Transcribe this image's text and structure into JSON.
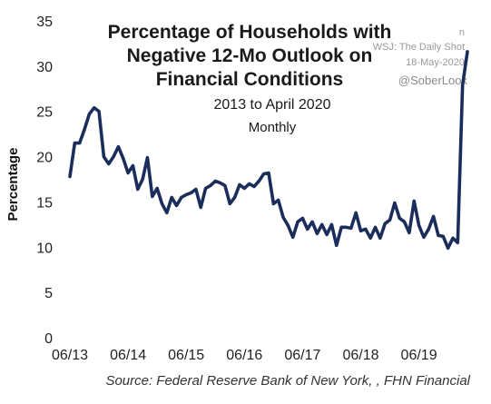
{
  "chart_data": {
    "type": "line",
    "title_lines": [
      "Percentage of Households with",
      "Negative 12-Mo Outlook on",
      "Financial Conditions"
    ],
    "subtitle": "2013 to April 2020",
    "frequency": "Monthly",
    "ylabel": "Percentage",
    "xlabel": "",
    "ylim": [
      0,
      35
    ],
    "yticks": [
      0,
      5,
      10,
      15,
      20,
      25,
      30,
      35
    ],
    "xticks": [
      "06/13",
      "06/14",
      "06/15",
      "06/16",
      "06/17",
      "06/18",
      "06/19"
    ],
    "source": "Source:  Federal Reserve Bank of New York, , FHN Financial",
    "watermark": {
      "line1": "WSJ: The Daily Shot",
      "line2": "18-May-2020",
      "line3": "@SoberLook",
      "partial": "n"
    },
    "grid": false,
    "line_color": "#1b2d5b",
    "series": [
      {
        "x_start": "2013-06",
        "values": [
          17.8,
          21.5,
          21.5,
          23.0,
          24.7,
          25.4,
          25.0,
          20.0,
          19.2,
          20.0,
          21.1,
          19.8,
          18.2,
          19.0,
          16.4,
          17.5,
          19.9,
          15.6,
          16.5,
          14.8,
          13.8,
          15.5,
          14.6,
          15.5,
          15.8,
          16.0,
          16.4,
          14.4,
          16.5,
          16.8,
          17.3,
          17.1,
          16.8,
          14.8,
          15.5,
          16.9,
          16.5,
          17.0,
          16.7,
          17.3,
          18.1,
          18.2,
          14.8,
          15.2,
          13.3,
          12.4,
          11.1,
          12.8,
          13.2,
          12.0,
          12.8,
          11.5,
          12.5,
          11.4,
          12.5,
          10.2,
          12.2,
          12.2,
          12.1,
          13.8,
          11.8,
          12.0,
          11.0,
          12.2,
          11.0,
          12.6,
          13.0,
          14.9,
          13.2,
          12.8,
          11.6,
          15.1,
          12.4,
          11.1,
          12.0,
          13.4,
          11.3,
          11.2,
          9.9,
          11.0,
          10.5,
          27.9,
          31.6
        ]
      }
    ]
  }
}
